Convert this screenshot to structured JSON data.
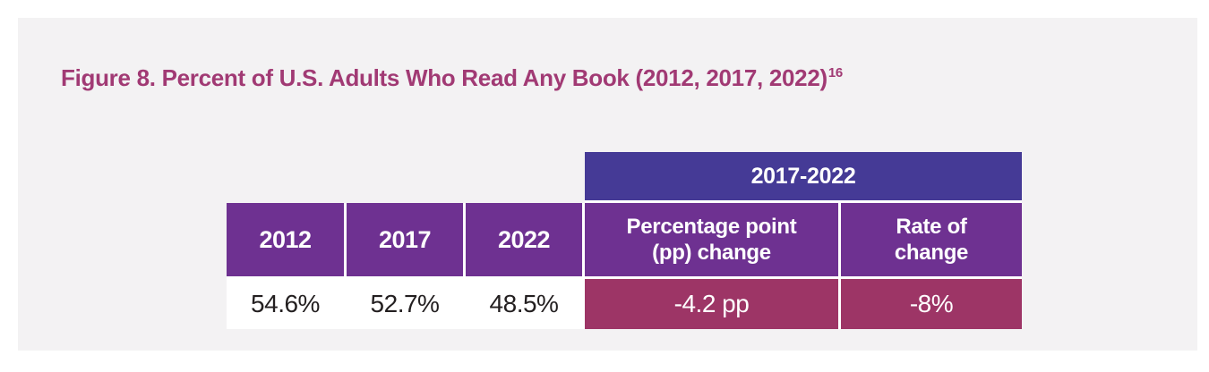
{
  "figure": {
    "title": "Figure 8. Percent of U.S. Adults Who Read Any Book (2012, 2017, 2022)",
    "title_superscript": "16"
  },
  "table": {
    "span_header": "2017-2022",
    "year_headers": [
      "2012",
      "2017",
      "2022"
    ],
    "year_values": [
      "54.6%",
      "52.7%",
      "48.5%"
    ],
    "change_headers": [
      [
        "Percentage point",
        "(pp) change"
      ],
      [
        "Rate of",
        "change"
      ]
    ],
    "change_values": [
      "-4.2 pp",
      "-8%"
    ]
  },
  "chart_data": {
    "type": "table",
    "title": "Figure 8. Percent of U.S. Adults Who Read Any Book (2012, 2017, 2022)",
    "footnote_marker": "16",
    "columns": [
      "2012",
      "2017",
      "2022",
      "Percentage point (pp) change",
      "Rate of change"
    ],
    "span_header": {
      "label": "2017-2022",
      "spans": [
        "Percentage point (pp) change",
        "Rate of change"
      ]
    },
    "rows": [
      [
        "54.6%",
        "52.7%",
        "48.5%",
        "-4.2 pp",
        "-8%"
      ]
    ],
    "layout": "single data row; years on white background, 2017-2022 change metrics highlighted"
  },
  "colors": {
    "page_bg": "#ffffff",
    "card_bg": "#f3f2f3",
    "title_text": "#a13a74",
    "span_header_bg": "#453a96",
    "column_header_bg": "#6e3191",
    "change_value_bg": "#9d3566",
    "header_text": "#ffffff",
    "value_text": "#231f20",
    "separator": "#ffffff"
  }
}
